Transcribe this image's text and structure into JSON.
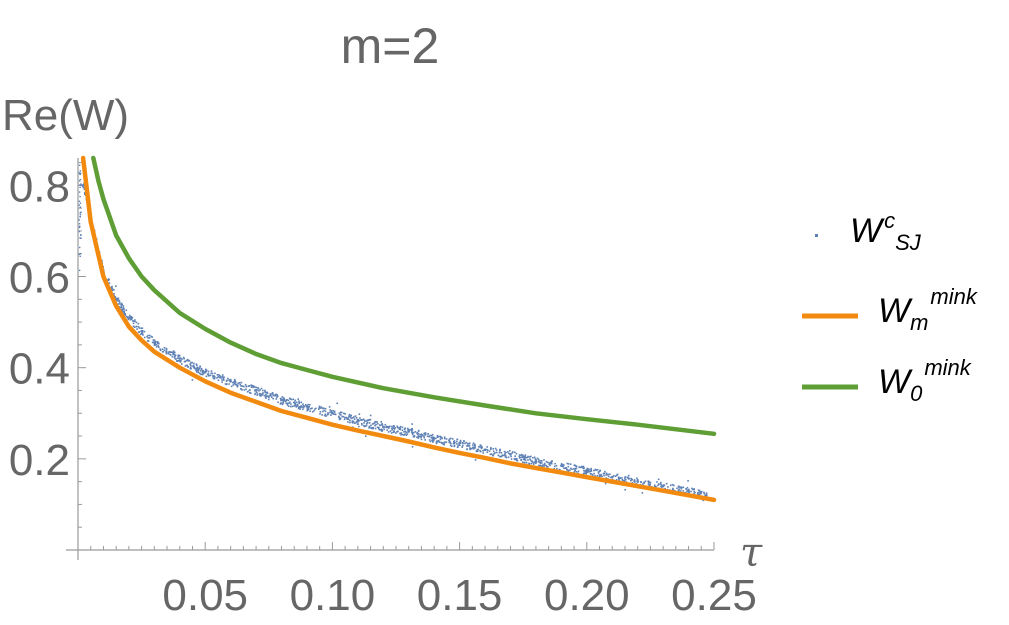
{
  "chart_data": {
    "type": "line+scatter",
    "title": "m=2",
    "ylabel": "Re(W)",
    "xlabel": "τ",
    "xlim": [
      0,
      0.25
    ],
    "ylim": [
      0,
      0.86
    ],
    "x_ticks": [
      {
        "value": 0.05,
        "label": "0.05"
      },
      {
        "value": 0.1,
        "label": "0.10"
      },
      {
        "value": 0.15,
        "label": "0.15"
      },
      {
        "value": 0.2,
        "label": "0.20"
      },
      {
        "value": 0.25,
        "label": "0.25"
      }
    ],
    "y_ticks": [
      {
        "value": 0.2,
        "label": "0.2"
      },
      {
        "value": 0.4,
        "label": "0.4"
      },
      {
        "value": 0.6,
        "label": "0.6"
      },
      {
        "value": 0.8,
        "label": "0.8"
      }
    ],
    "legend_position": "right",
    "series": [
      {
        "name": "W^c_SJ",
        "legend": {
          "base": "W",
          "sup": "c",
          "sub": "SJ"
        },
        "kind": "scatter",
        "color": "#5E81B5",
        "x": [
          0.002,
          0.005,
          0.01,
          0.015,
          0.02,
          0.025,
          0.03,
          0.04,
          0.05,
          0.06,
          0.07,
          0.08,
          0.09,
          0.1,
          0.11,
          0.12,
          0.13,
          0.14,
          0.15,
          0.16,
          0.17,
          0.18,
          0.19,
          0.2,
          0.21,
          0.22,
          0.23,
          0.24,
          0.247
        ],
        "y": [
          0.8,
          0.72,
          0.61,
          0.55,
          0.51,
          0.48,
          0.455,
          0.42,
          0.39,
          0.37,
          0.35,
          0.33,
          0.315,
          0.3,
          0.285,
          0.27,
          0.26,
          0.245,
          0.235,
          0.22,
          0.21,
          0.195,
          0.185,
          0.175,
          0.16,
          0.15,
          0.14,
          0.13,
          0.12
        ]
      },
      {
        "name": "W_m^mink",
        "legend": {
          "base": "W",
          "sub": "m",
          "sup": "mink"
        },
        "kind": "line",
        "color": "#F28A0F",
        "x": [
          0.002,
          0.005,
          0.01,
          0.015,
          0.02,
          0.025,
          0.03,
          0.04,
          0.05,
          0.06,
          0.07,
          0.08,
          0.09,
          0.1,
          0.11,
          0.12,
          0.13,
          0.14,
          0.15,
          0.16,
          0.17,
          0.18,
          0.19,
          0.2,
          0.21,
          0.22,
          0.23,
          0.24,
          0.25
        ],
        "y": [
          0.86,
          0.72,
          0.6,
          0.535,
          0.49,
          0.46,
          0.435,
          0.4,
          0.37,
          0.345,
          0.325,
          0.305,
          0.29,
          0.275,
          0.262,
          0.25,
          0.238,
          0.225,
          0.213,
          0.202,
          0.19,
          0.18,
          0.17,
          0.16,
          0.15,
          0.14,
          0.13,
          0.12,
          0.11
        ]
      },
      {
        "name": "W_0^mink",
        "legend": {
          "base": "W",
          "sub": "0",
          "sup": "mink"
        },
        "kind": "line",
        "color": "#5E9E35",
        "x": [
          0.006,
          0.008,
          0.01,
          0.015,
          0.02,
          0.025,
          0.03,
          0.04,
          0.05,
          0.06,
          0.07,
          0.08,
          0.09,
          0.1,
          0.12,
          0.14,
          0.16,
          0.18,
          0.2,
          0.22,
          0.25
        ],
        "y": [
          0.86,
          0.81,
          0.77,
          0.69,
          0.64,
          0.6,
          0.57,
          0.52,
          0.485,
          0.455,
          0.43,
          0.41,
          0.395,
          0.38,
          0.355,
          0.335,
          0.317,
          0.3,
          0.287,
          0.275,
          0.255
        ]
      }
    ]
  }
}
